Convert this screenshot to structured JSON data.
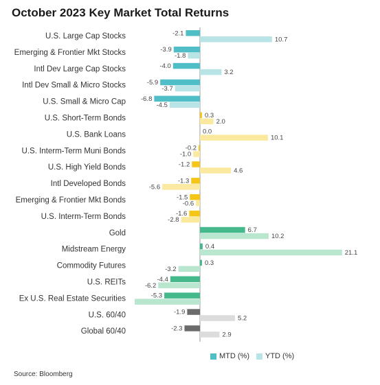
{
  "title": "October 2023 Key Market Total Returns",
  "source": "Source: Bloomberg",
  "legend": {
    "mtd_label": "MTD (%)",
    "ytd_label": "YTD (%)",
    "mtd_color": "#4fbec6",
    "ytd_color": "#b9e4e6"
  },
  "colors": {
    "group_stocks": [
      "#4fbec6",
      "#b9e4e6"
    ],
    "group_bonds": [
      "#f5c518",
      "#fbe9a0"
    ],
    "group_real_assets": [
      "#45b98c",
      "#b8e6cf"
    ],
    "group_balanced": [
      "#6b6b6b",
      "#dcdcdc"
    ]
  },
  "chart_data": {
    "type": "bar",
    "orientation": "horizontal",
    "title": "October 2023 Key Market Total Returns",
    "categories": [
      "U.S. Large Cap Stocks",
      "Emerging & Frontier Mkt Stocks",
      "Intl Dev Large Cap Stocks",
      "Intl Dev Small & Micro Stocks",
      "U.S. Small & Micro Cap",
      "U.S. Short-Term Bonds",
      "U.S. Bank Loans",
      "U.S. Interm-Term Muni Bonds",
      "U.S. High Yield Bonds",
      "Intl Developed Bonds",
      "Emerging & Frontier Mkt Bonds",
      "U.S. Interm-Term Bonds",
      "Gold",
      "Midstream Energy",
      "Commodity Futures",
      "U.S. REITs",
      "Ex U.S. Real Estate Securities",
      "U.S. 60/40",
      "Global 60/40"
    ],
    "groups": [
      "stocks",
      "stocks",
      "stocks",
      "stocks",
      "stocks",
      "bonds",
      "bonds",
      "bonds",
      "bonds",
      "bonds",
      "bonds",
      "bonds",
      "real_assets",
      "real_assets",
      "real_assets",
      "real_assets",
      "real_assets",
      "balanced",
      "balanced"
    ],
    "series": [
      {
        "name": "MTD (%)",
        "values": [
          -2.1,
          -3.9,
          -4.0,
          -5.9,
          -6.8,
          0.3,
          0.0,
          -0.2,
          -1.2,
          -1.3,
          -1.5,
          -1.6,
          6.7,
          0.4,
          0.3,
          -4.4,
          -5.3,
          -1.9,
          -2.3
        ],
        "labels": [
          "-2.1",
          "-3.9",
          "-4.0",
          "-5.9",
          "-6.8",
          "0.3",
          "0.0",
          "-0.2",
          "-1.2",
          "-1.3",
          "-1.5",
          "-1.6",
          "6.7",
          "0.4",
          "0.3",
          "-4.4",
          "-5.3",
          "-1.9",
          "-2.3"
        ]
      },
      {
        "name": "YTD (%)",
        "values": [
          10.7,
          -1.8,
          3.2,
          -3.7,
          -4.5,
          2.0,
          10.1,
          -1.0,
          4.6,
          -5.6,
          -0.6,
          -2.8,
          10.2,
          21.1,
          -3.2,
          -6.2,
          null,
          5.2,
          2.9
        ],
        "labels": [
          "10.7",
          "-1.8",
          "3.2",
          "-3.7",
          "-4.5",
          "2.0",
          "10.1",
          "-1.0",
          "4.6",
          "-5.6",
          "-0.6",
          "-2.8",
          "10.2",
          "21.1",
          "-3.2",
          "-6.2",
          "",
          "5.2",
          "2.9"
        ]
      }
    ],
    "xlim": [
      -7.5,
      21.5
    ],
    "grid": false,
    "legend_position": "bottom-right"
  }
}
